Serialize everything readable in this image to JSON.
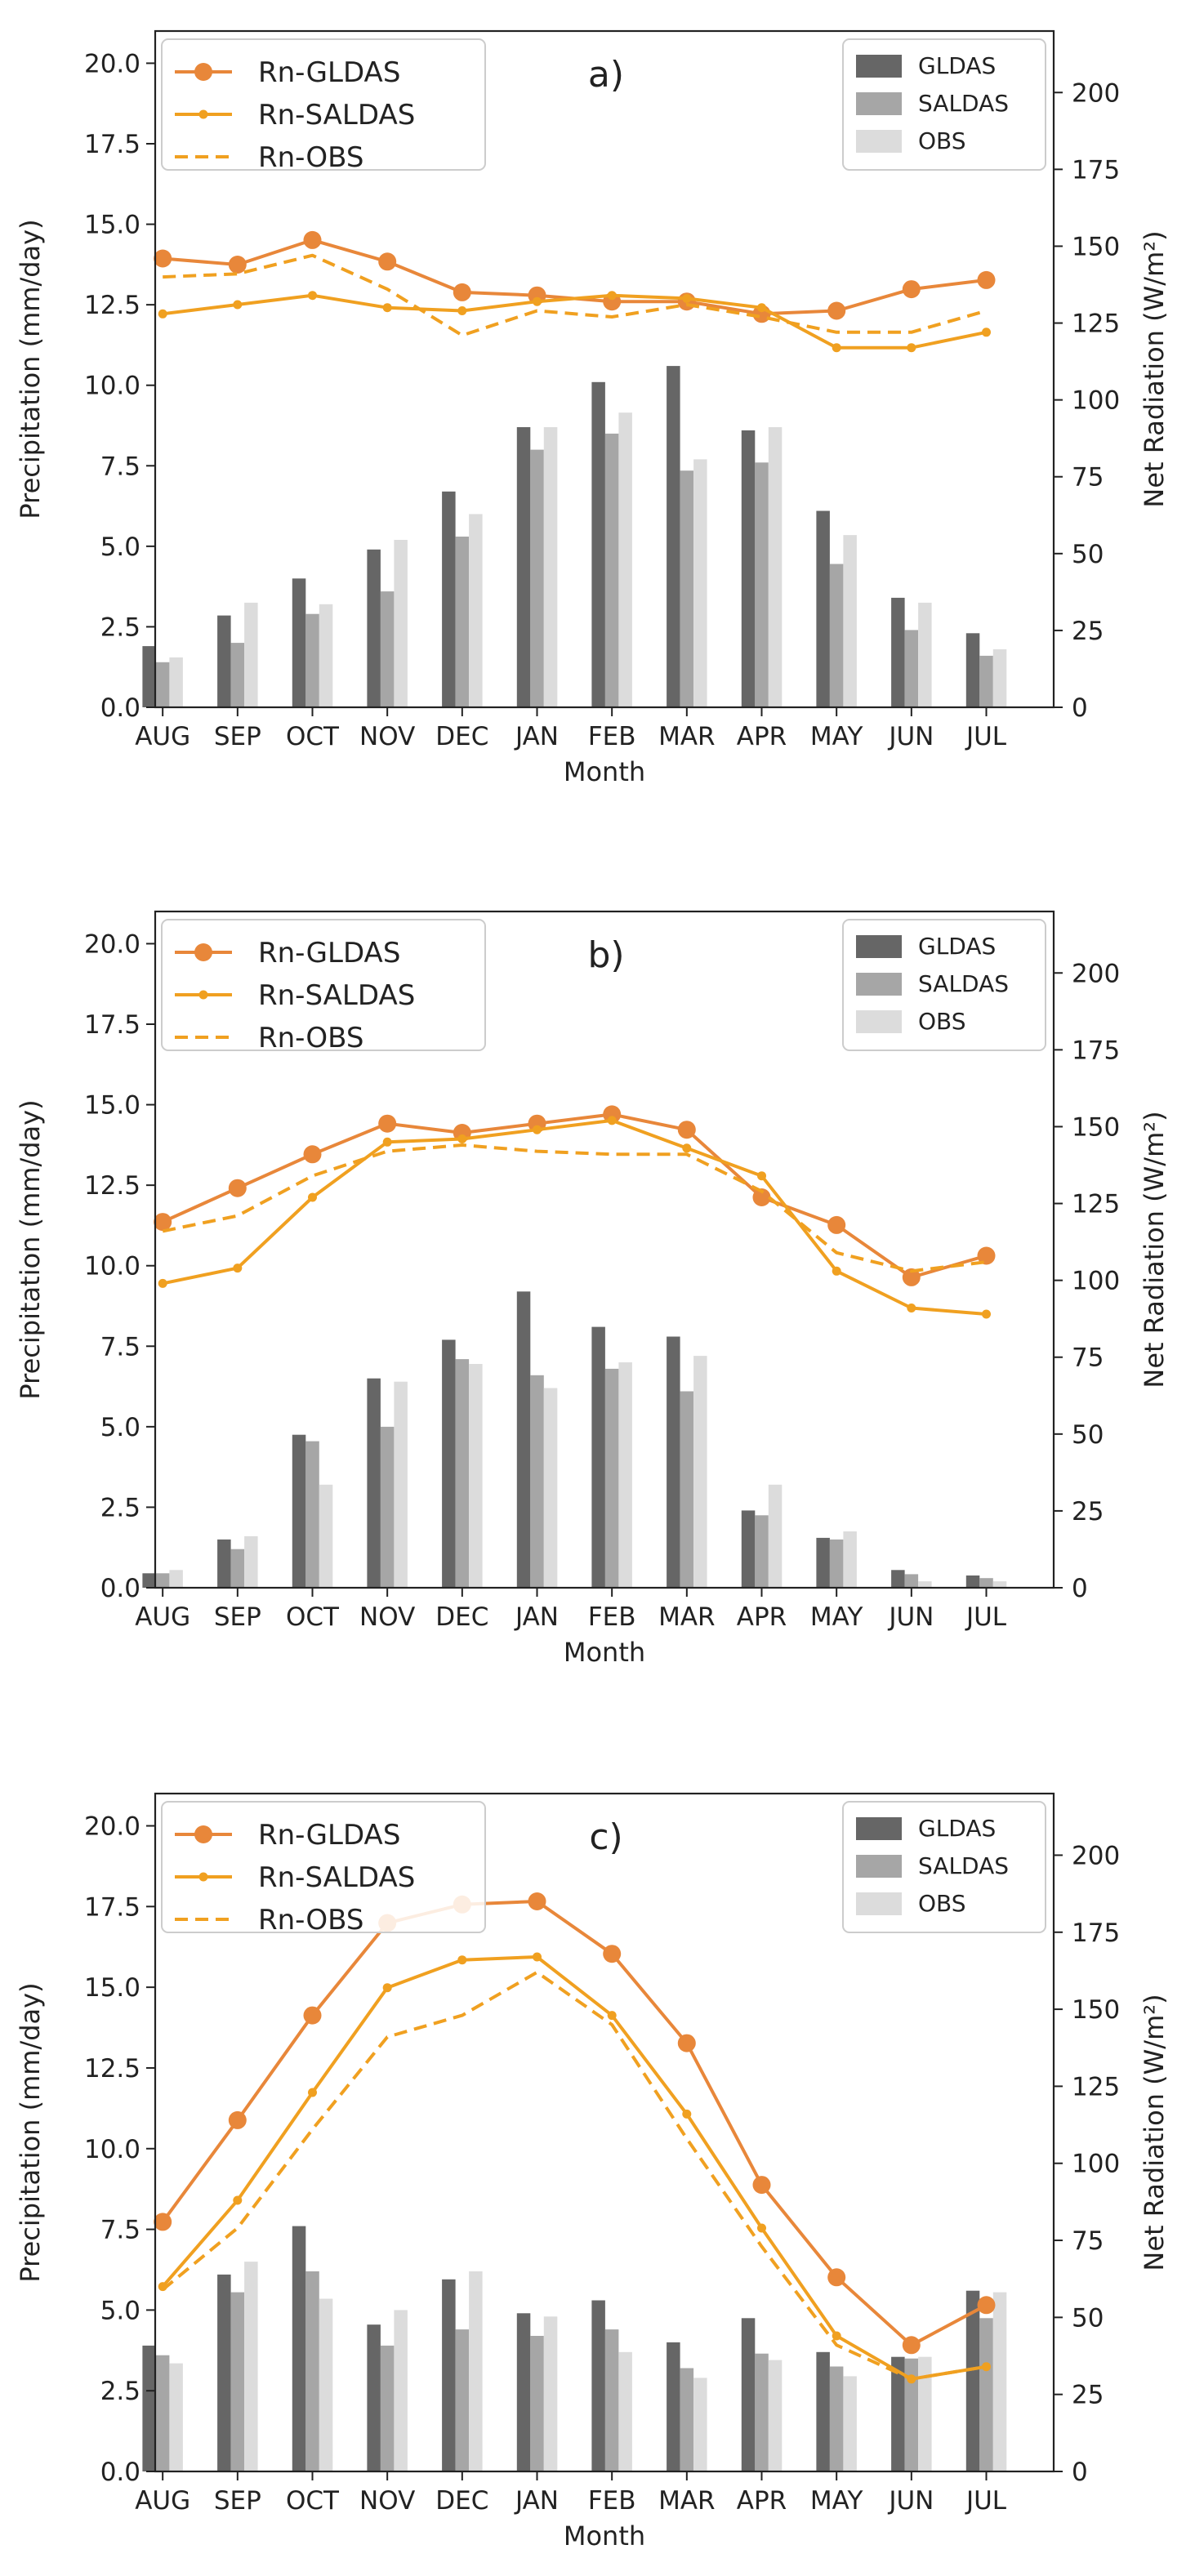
{
  "chart_data": [
    {
      "type": "bar",
      "panel_label": "a)",
      "categories": [
        "AUG",
        "SEP",
        "OCT",
        "NOV",
        "DEC",
        "JAN",
        "FEB",
        "MAR",
        "APR",
        "MAY",
        "JUN",
        "JUL"
      ],
      "xlabel": "Month",
      "ylabel": "Precipitation (mm/day)",
      "ylim": [
        0,
        21
      ],
      "yticks": [
        "0.0",
        "2.5",
        "5.0",
        "7.5",
        "10.0",
        "12.5",
        "15.0",
        "17.5",
        "20.0"
      ],
      "y2label": "Net Radiation (W/m²)",
      "y2lim": [
        0,
        220
      ],
      "y2ticks": [
        "0",
        "25",
        "50",
        "75",
        "100",
        "125",
        "150",
        "175",
        "200"
      ],
      "series": [
        {
          "name": "GLDAS",
          "kind": "bar",
          "color": "#666666",
          "values": [
            1.9,
            2.85,
            4.0,
            4.9,
            6.7,
            8.7,
            10.1,
            10.6,
            8.6,
            6.1,
            3.4,
            2.3
          ]
        },
        {
          "name": "SALDAS",
          "kind": "bar",
          "color": "#a6a6a6",
          "values": [
            1.4,
            2.0,
            2.9,
            3.6,
            5.3,
            8.0,
            8.5,
            7.35,
            7.6,
            4.45,
            2.4,
            1.6
          ]
        },
        {
          "name": "OBS",
          "kind": "bar",
          "color": "#dcdcdc",
          "values": [
            1.55,
            3.25,
            3.2,
            5.2,
            6.0,
            8.7,
            9.15,
            7.7,
            8.7,
            5.35,
            3.25,
            1.8
          ]
        },
        {
          "name": "Rn-GLDAS",
          "kind": "line",
          "style": "solid-marker",
          "color": "#e8873a",
          "values": [
            146,
            144,
            152,
            145,
            135,
            134,
            132,
            132,
            128,
            129,
            136,
            139
          ]
        },
        {
          "name": "Rn-SALDAS",
          "kind": "line",
          "style": "solid-dot",
          "color": "#f0a020",
          "values": [
            128,
            131,
            134,
            130,
            129,
            132,
            134,
            133,
            130,
            117,
            117,
            122
          ]
        },
        {
          "name": "Rn-OBS",
          "kind": "line",
          "style": "dashed",
          "color": "#f0a020",
          "values": [
            140,
            141,
            147,
            136,
            121,
            129,
            127,
            131,
            127,
            122,
            122,
            129
          ]
        }
      ]
    },
    {
      "type": "bar",
      "panel_label": "b)",
      "categories": [
        "AUG",
        "SEP",
        "OCT",
        "NOV",
        "DEC",
        "JAN",
        "FEB",
        "MAR",
        "APR",
        "MAY",
        "JUN",
        "JUL"
      ],
      "xlabel": "Month",
      "ylabel": "Precipitation (mm/day)",
      "ylim": [
        0,
        21
      ],
      "yticks": [
        "0.0",
        "2.5",
        "5.0",
        "7.5",
        "10.0",
        "12.5",
        "15.0",
        "17.5",
        "20.0"
      ],
      "y2label": "Net Radiation (W/m²)",
      "y2lim": [
        0,
        220
      ],
      "y2ticks": [
        "0",
        "25",
        "50",
        "75",
        "100",
        "125",
        "150",
        "175",
        "200"
      ],
      "series": [
        {
          "name": "GLDAS",
          "kind": "bar",
          "color": "#666666",
          "values": [
            0.45,
            1.5,
            4.75,
            6.5,
            7.7,
            9.2,
            8.1,
            7.8,
            2.4,
            1.55,
            0.55,
            0.38
          ]
        },
        {
          "name": "SALDAS",
          "kind": "bar",
          "color": "#a6a6a6",
          "values": [
            0.45,
            1.2,
            4.55,
            5.0,
            7.1,
            6.6,
            6.8,
            6.1,
            2.25,
            1.5,
            0.42,
            0.3
          ]
        },
        {
          "name": "OBS",
          "kind": "bar",
          "color": "#dcdcdc",
          "values": [
            0.55,
            1.6,
            3.2,
            6.4,
            6.95,
            6.2,
            7.0,
            7.2,
            3.2,
            1.75,
            0.2,
            0.2
          ]
        },
        {
          "name": "Rn-GLDAS",
          "kind": "line",
          "style": "solid-marker",
          "color": "#e8873a",
          "values": [
            119,
            130,
            141,
            151,
            148,
            151,
            154,
            149,
            127,
            118,
            101,
            108
          ]
        },
        {
          "name": "Rn-SALDAS",
          "kind": "line",
          "style": "solid-dot",
          "color": "#f0a020",
          "values": [
            99,
            104,
            127,
            145,
            146,
            149,
            152,
            143,
            134,
            103,
            91,
            89
          ]
        },
        {
          "name": "Rn-OBS",
          "kind": "line",
          "style": "dashed",
          "color": "#f0a020",
          "values": [
            116,
            121,
            134,
            142,
            144,
            142,
            141,
            141,
            129,
            109,
            103,
            106
          ]
        }
      ]
    },
    {
      "type": "bar",
      "panel_label": "c)",
      "categories": [
        "AUG",
        "SEP",
        "OCT",
        "NOV",
        "DEC",
        "JAN",
        "FEB",
        "MAR",
        "APR",
        "MAY",
        "JUN",
        "JUL"
      ],
      "xlabel": "Month",
      "ylabel": "Precipitation (mm/day)",
      "ylim": [
        0,
        21
      ],
      "yticks": [
        "0.0",
        "2.5",
        "5.0",
        "7.5",
        "10.0",
        "12.5",
        "15.0",
        "17.5",
        "20.0"
      ],
      "y2label": "Net Radiation (W/m²)",
      "y2lim": [
        0,
        220
      ],
      "y2ticks": [
        "0",
        "25",
        "50",
        "75",
        "100",
        "125",
        "150",
        "175",
        "200"
      ],
      "series": [
        {
          "name": "GLDAS",
          "kind": "bar",
          "color": "#666666",
          "values": [
            3.9,
            6.1,
            7.6,
            4.55,
            5.95,
            4.9,
            5.3,
            4.0,
            4.75,
            3.7,
            3.55,
            5.6
          ]
        },
        {
          "name": "SALDAS",
          "kind": "bar",
          "color": "#a6a6a6",
          "values": [
            3.6,
            5.55,
            6.2,
            3.9,
            4.4,
            4.2,
            4.4,
            3.2,
            3.65,
            3.25,
            3.5,
            4.75
          ]
        },
        {
          "name": "OBS",
          "kind": "bar",
          "color": "#dcdcdc",
          "values": [
            3.35,
            6.5,
            5.35,
            5.0,
            6.2,
            4.8,
            3.7,
            2.9,
            3.45,
            2.95,
            3.55,
            5.55
          ]
        },
        {
          "name": "Rn-GLDAS",
          "kind": "line",
          "style": "solid-marker",
          "color": "#e8873a",
          "values": [
            81,
            114,
            148,
            178,
            184,
            185,
            168,
            139,
            93,
            63,
            41,
            54
          ]
        },
        {
          "name": "Rn-SALDAS",
          "kind": "line",
          "style": "solid-dot",
          "color": "#f0a020",
          "values": [
            60,
            88,
            123,
            157,
            166,
            167,
            148,
            116,
            79,
            44,
            30,
            34
          ]
        },
        {
          "name": "Rn-OBS",
          "kind": "line",
          "style": "dashed",
          "color": "#f0a020",
          "values": [
            59,
            79,
            111,
            141,
            148,
            162,
            145,
            108,
            73,
            41,
            30,
            34
          ]
        }
      ]
    }
  ]
}
